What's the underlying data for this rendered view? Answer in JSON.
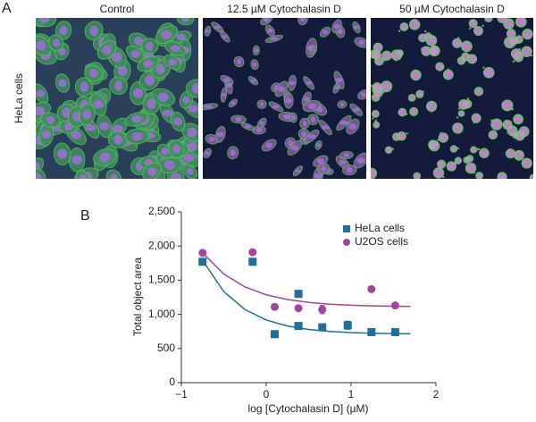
{
  "panel_a": {
    "label": "A",
    "row_label": "HeLa cells",
    "columns": [
      "Control",
      "12.5 µM Cytochalasin D",
      "50 µM Cytochalasin D"
    ]
  },
  "panel_b": {
    "label": "B"
  },
  "chart_data": {
    "type": "scatter",
    "x_label": "log [Cytochalasin D] (µM)",
    "y_label": "Total object area",
    "xlim": [
      -1,
      2
    ],
    "xticks": [
      {
        "value": -1,
        "label": "−1"
      },
      0,
      1,
      2
    ],
    "ylim": [
      0,
      2500
    ],
    "yticks": [
      0,
      500,
      {
        "value": 1000,
        "label": "1,000"
      },
      {
        "value": 1500,
        "label": "1,500"
      },
      {
        "value": 2000,
        "label": "2,000"
      },
      {
        "value": 2500,
        "label": "2,500"
      }
    ],
    "legend": "upper right",
    "series": [
      {
        "name": "HeLa cells",
        "color": "#1f6f9e",
        "marker": "square",
        "x": [
          -0.75,
          -0.16,
          0.1,
          0.38,
          0.38,
          0.66,
          0.96,
          1.24,
          1.52
        ],
        "values": [
          1770,
          1770,
          710,
          1300,
          830,
          810,
          840,
          740,
          740
        ],
        "errors": [
          null,
          null,
          null,
          null,
          null,
          null,
          60,
          null,
          null
        ]
      },
      {
        "name": "U2OS cells",
        "color": "#a3459f",
        "marker": "circle",
        "x": [
          -0.75,
          -0.16,
          0.1,
          0.38,
          0.66,
          1.24,
          1.52
        ],
        "values": [
          1900,
          1910,
          1110,
          1090,
          1070,
          1370,
          1130
        ],
        "errors": [
          null,
          null,
          null,
          null,
          60,
          null,
          null
        ]
      }
    ],
    "fits": [
      {
        "color": "#1f6f9e",
        "x": [
          -0.75,
          -0.5,
          -0.25,
          0,
          0.25,
          0.5,
          0.75,
          1,
          1.25,
          1.5,
          1.7
        ],
        "values": [
          1790,
          1333,
          1070,
          917,
          830,
          779,
          750,
          733,
          723,
          718,
          715
        ]
      },
      {
        "color": "#a3459f",
        "x": [
          -0.75,
          -0.5,
          -0.25,
          0,
          0.25,
          0.5,
          0.75,
          1,
          1.25,
          1.5,
          1.7
        ],
        "values": [
          1900,
          1590,
          1401,
          1286,
          1217,
          1175,
          1149,
          1134,
          1124,
          1119,
          1116
        ]
      }
    ]
  }
}
